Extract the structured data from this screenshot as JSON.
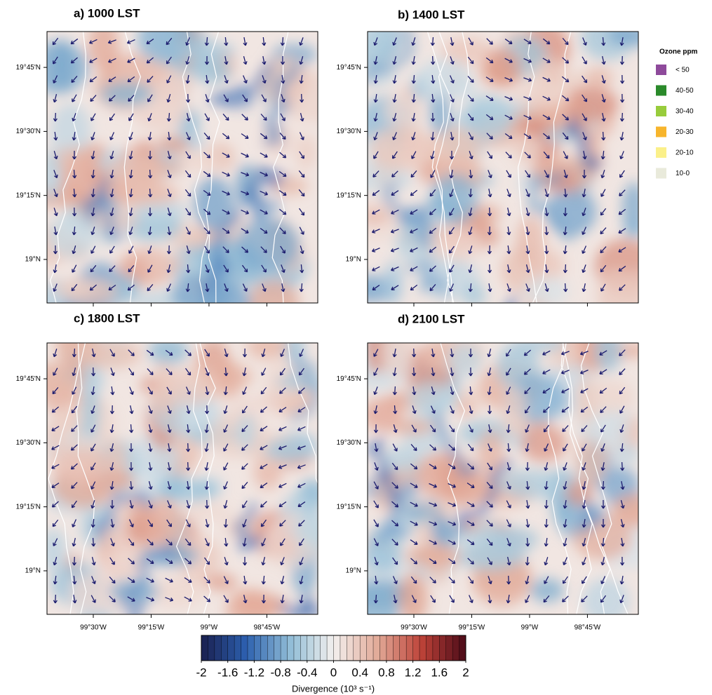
{
  "panels": [
    {
      "title": "a) 1000 LST"
    },
    {
      "title": "b) 1400 LST"
    },
    {
      "title": "c) 1800 LST"
    },
    {
      "title": "d) 2100 LST"
    }
  ],
  "lat_lim": [
    18.83,
    19.89
  ],
  "lon_lim": [
    -99.7,
    -98.53
  ],
  "lat_ticks": [
    {
      "value": 19.75,
      "label": "19°45'N"
    },
    {
      "value": 19.5,
      "label": "19°30'N"
    },
    {
      "value": 19.25,
      "label": "19°15'N"
    },
    {
      "value": 19.0,
      "label": "19°N"
    }
  ],
  "lon_ticks": [
    {
      "value": -99.5,
      "label": "99°30'W"
    },
    {
      "value": -99.25,
      "label": "99°15'W"
    },
    {
      "value": -99.0,
      "label": "99°W"
    },
    {
      "value": -98.75,
      "label": "98°45'W"
    }
  ],
  "legend": {
    "title": "Ozone ppm",
    "items": [
      {
        "label": "< 50",
        "color": "#8e4a9b"
      },
      {
        "label": "40-50",
        "color": "#2a8a2a"
      },
      {
        "label": "30-40",
        "color": "#98cc3c"
      },
      {
        "label": "20-30",
        "color": "#f7b52c"
      },
      {
        "label": "20-10",
        "color": "#fbf08a"
      },
      {
        "label": "10-0",
        "color": "#e9eadb"
      }
    ]
  },
  "colorbar": {
    "label": "Divergence (10³ s⁻¹)",
    "lim": [
      -2,
      2
    ],
    "ticks": [
      -2,
      -1.6,
      -1.2,
      -0.8,
      -0.4,
      0,
      0.4,
      0.8,
      1.2,
      1.6,
      2
    ],
    "colors": [
      "#1a1f4f",
      "#2c5fae",
      "#8fbcd6",
      "#f3f0ee",
      "#e2aa98",
      "#bd4238",
      "#4a0a18"
    ]
  }
}
